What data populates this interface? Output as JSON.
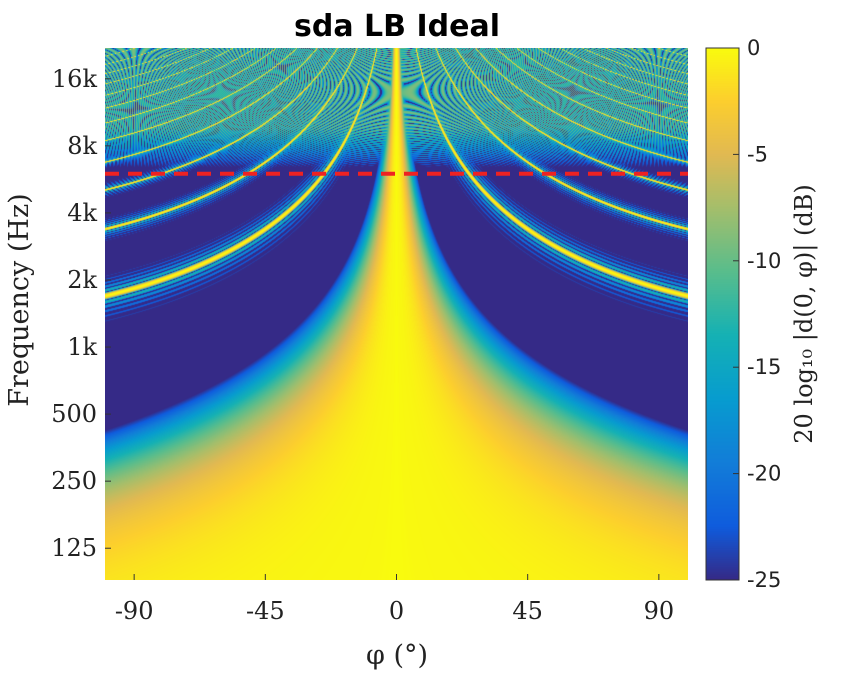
{
  "chart_data": {
    "type": "heatmap",
    "title": "sda LB Ideal",
    "xlabel": "φ (°)",
    "ylabel": "Frequency (Hz)",
    "colorbar_label": "20 log₁₀ |d(0, φ)| (dB)",
    "x_ticks": [
      {
        "value": -90,
        "label": "-90"
      },
      {
        "value": -45,
        "label": "-45"
      },
      {
        "value": 0,
        "label": "0"
      },
      {
        "value": 45,
        "label": "45"
      },
      {
        "value": 90,
        "label": "90"
      }
    ],
    "y_ticks": [
      {
        "value": 125,
        "label": "125"
      },
      {
        "value": 250,
        "label": "250"
      },
      {
        "value": 500,
        "label": "500"
      },
      {
        "value": 1000,
        "label": "1k"
      },
      {
        "value": 2000,
        "label": "2k"
      },
      {
        "value": 4000,
        "label": "4k"
      },
      {
        "value": 8000,
        "label": "8k"
      },
      {
        "value": 16000,
        "label": "16k"
      }
    ],
    "colorbar_ticks": [
      {
        "value": 0,
        "label": "0"
      },
      {
        "value": -5,
        "label": "-5"
      },
      {
        "value": -10,
        "label": "-10"
      },
      {
        "value": -15,
        "label": "-15"
      },
      {
        "value": -20,
        "label": "-20"
      },
      {
        "value": -25,
        "label": "-25"
      }
    ],
    "xlim": [
      -100,
      100
    ],
    "ylim_hz": [
      90,
      22000
    ],
    "yscale": "log",
    "clim": [
      -25,
      0
    ],
    "colormap": "parula",
    "reference_line": {
      "frequency_hz": 6000,
      "style": "dashed",
      "color": "#ee2222"
    }
  }
}
